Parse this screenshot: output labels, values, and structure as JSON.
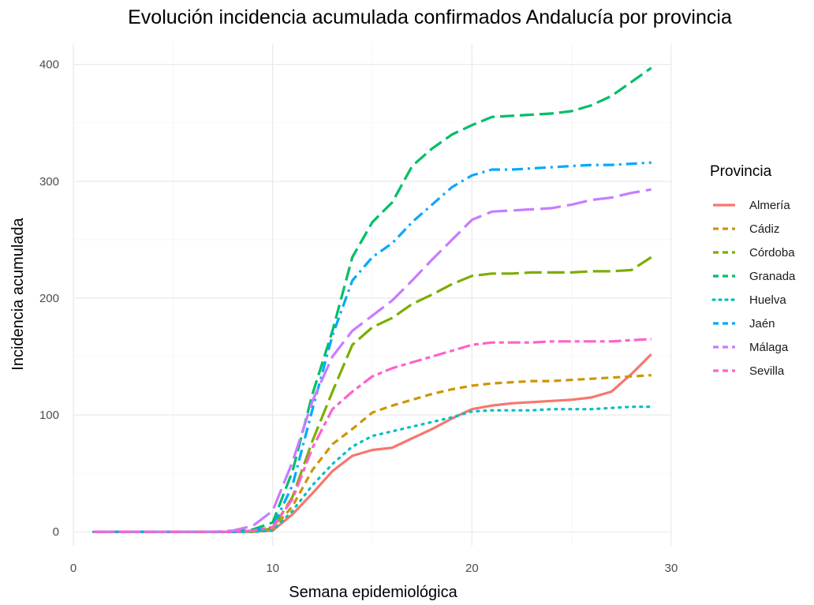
{
  "chart_data": {
    "type": "line",
    "title": "Evolución incidencia acumulada confirmados Andalucía por provincia",
    "xlabel": "Semana epidemiológica",
    "ylabel": "Incidencia acumulada",
    "xlim": [
      0,
      30
    ],
    "ylim": [
      0,
      400
    ],
    "x_ticks": [
      0,
      10,
      20,
      30
    ],
    "y_ticks": [
      0,
      100,
      200,
      300,
      400
    ],
    "grid": true,
    "legend": {
      "title": "Provincia",
      "position": "right"
    },
    "x": [
      1,
      2,
      3,
      4,
      5,
      6,
      7,
      8,
      9,
      10,
      11,
      12,
      13,
      14,
      15,
      16,
      17,
      18,
      19,
      20,
      21,
      22,
      23,
      24,
      25,
      26,
      27,
      28,
      29
    ],
    "series": [
      {
        "name": "Almería",
        "color": "#F8766D",
        "dash": "solid",
        "values": [
          0,
          0,
          0,
          0,
          0,
          0,
          0,
          0,
          0,
          1,
          15,
          33,
          52,
          65,
          70,
          72,
          80,
          88,
          97,
          105,
          108,
          110,
          111,
          112,
          113,
          115,
          120,
          135,
          152
        ]
      },
      {
        "name": "Cádiz",
        "color": "#CD9600",
        "dash": "dashed",
        "values": [
          0,
          0,
          0,
          0,
          0,
          0,
          0,
          0,
          0,
          2,
          22,
          53,
          75,
          88,
          102,
          108,
          113,
          118,
          122,
          125,
          127,
          128,
          129,
          129,
          130,
          131,
          132,
          133,
          134
        ]
      },
      {
        "name": "Córdoba",
        "color": "#7CAE00",
        "dash": "longdash",
        "values": [
          0,
          0,
          0,
          0,
          0,
          0,
          0,
          0,
          0,
          3,
          30,
          78,
          120,
          160,
          175,
          183,
          195,
          203,
          212,
          219,
          221,
          221,
          222,
          222,
          222,
          223,
          223,
          224,
          235
        ]
      },
      {
        "name": "Granada",
        "color": "#00BE67",
        "dash": "longdash2",
        "values": [
          0,
          0,
          0,
          0,
          0,
          0,
          0,
          0,
          2,
          8,
          52,
          118,
          172,
          235,
          265,
          282,
          313,
          328,
          340,
          348,
          355,
          356,
          357,
          358,
          360,
          365,
          373,
          385,
          397
        ]
      },
      {
        "name": "Huelva",
        "color": "#00BFC4",
        "dash": "dotted",
        "values": [
          0,
          0,
          0,
          0,
          0,
          0,
          0,
          0,
          0,
          1,
          18,
          40,
          58,
          73,
          82,
          86,
          90,
          94,
          98,
          103,
          104,
          104,
          104,
          105,
          105,
          105,
          106,
          107,
          107
        ]
      },
      {
        "name": "Jaén",
        "color": "#00A9FF",
        "dash": "dotdash",
        "values": [
          0,
          0,
          0,
          0,
          0,
          0,
          0,
          0,
          1,
          4,
          40,
          105,
          168,
          215,
          235,
          247,
          265,
          280,
          295,
          305,
          310,
          310,
          311,
          312,
          313,
          314,
          314,
          315,
          316
        ]
      },
      {
        "name": "Málaga",
        "color": "#C77CFF",
        "dash": "longdash3",
        "values": [
          0,
          0,
          0,
          0,
          0,
          0,
          0,
          1,
          5,
          18,
          60,
          112,
          150,
          172,
          185,
          198,
          215,
          233,
          250,
          267,
          274,
          275,
          276,
          277,
          280,
          284,
          286,
          290,
          293
        ]
      },
      {
        "name": "Sevilla",
        "color": "#FF61CC",
        "dash": "twodash",
        "values": [
          0,
          0,
          0,
          0,
          0,
          0,
          0,
          0,
          1,
          4,
          28,
          72,
          105,
          120,
          133,
          140,
          145,
          150,
          155,
          160,
          162,
          162,
          162,
          163,
          163,
          163,
          163,
          164,
          165
        ]
      }
    ]
  }
}
